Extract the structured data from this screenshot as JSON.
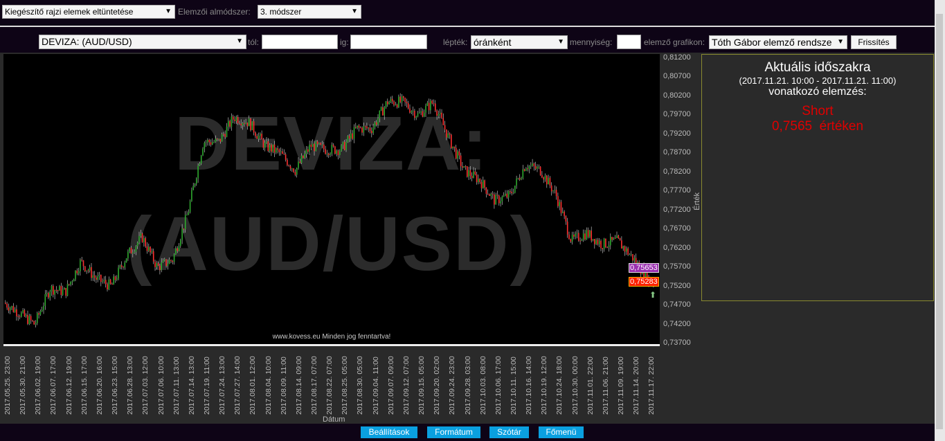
{
  "toolbar1": {
    "overlay_select": "Kiegészítő rajzi elemek eltüntetése",
    "submethod_label": "Elemzői almódszer:",
    "submethod_select": "3. módszer"
  },
  "toolbar2": {
    "instrument_select": "DEVIZA: (AUD/USD)",
    "from_label": "tól:",
    "from_value": "",
    "to_label": "ig:",
    "to_value": "",
    "scale_label": "lépték:",
    "scale_select": "óránként",
    "quantity_label": "mennyiség:",
    "quantity_value": "",
    "chart_label": "elemző grafikon:",
    "chart_select": "Tóth Gábor elemző rendsze",
    "refresh_button": "Frissítés"
  },
  "chart_data": {
    "type": "candlestick",
    "watermark": [
      "DEVIZA:",
      "(AUD/USD)"
    ],
    "footer": "www.kovess.eu Minden jog fenntartva!",
    "xlabel": "Dátum",
    "ylabel": "Érték",
    "ylim": [
      0.737,
      0.812
    ],
    "yticks": [
      "0,81200",
      "0,80700",
      "0,80200",
      "0,79700",
      "0,79200",
      "0,78700",
      "0,78200",
      "0,77700",
      "0,77200",
      "0,76700",
      "0,76200",
      "0,75700",
      "0,75200",
      "0,74700",
      "0,74200",
      "0,73700"
    ],
    "ytick_values": [
      0.812,
      0.807,
      0.802,
      0.797,
      0.792,
      0.787,
      0.782,
      0.777,
      0.772,
      0.767,
      0.762,
      0.757,
      0.752,
      0.747,
      0.742,
      0.737
    ],
    "xticks": [
      "2017.05.25. 23:00",
      "2017.05.30. 21:00",
      "2017.06.02. 19:00",
      "2017.06.07. 17:00",
      "2017.06.12. 19:00",
      "2017.06.15. 17:00",
      "2017.06.20. 16:00",
      "2017.06.23. 15:00",
      "2017.06.28. 13:00",
      "2017.07.03. 12:00",
      "2017.07.06. 10:00",
      "2017.07.11. 13:00",
      "2017.07.14. 13:00",
      "2017.07.19. 11:00",
      "2017.07.24. 13:00",
      "2017.07.27. 14:00",
      "2017.08.01. 12:00",
      "2017.08.04. 10:00",
      "2017.08.09. 11:00",
      "2017.08.14. 09:00",
      "2017.08.17. 07:00",
      "2017.08.22. 07:00",
      "2017.08.25. 05:00",
      "2017.08.30. 05:00",
      "2017.09.04. 11:00",
      "2017.09.07. 09:00",
      "2017.09.12. 07:00",
      "2017.09.15. 05:00",
      "2017.09.20. 02:00",
      "2017.09.24. 23:00",
      "2017.09.28. 03:00",
      "2017.10.03. 08:00",
      "2017.10.06. 17:00",
      "2017.10.11. 15:00",
      "2017.10.16. 14:00",
      "2017.10.19. 12:00",
      "2017.10.24. 18:00",
      "2017.10.30. 00:00",
      "2017.11.01. 22:00",
      "2017.11.06. 21:00",
      "2017.11.09. 19:00",
      "2017.11.14. 20:00",
      "2017.11.17. 22:00"
    ],
    "approx_close_at_ticks": [
      0.7477,
      0.745,
      0.742,
      0.7515,
      0.7505,
      0.7585,
      0.754,
      0.752,
      0.76,
      0.765,
      0.757,
      0.759,
      0.7715,
      0.79,
      0.79,
      0.7965,
      0.795,
      0.789,
      0.787,
      0.7825,
      0.789,
      0.788,
      0.788,
      0.7935,
      0.7935,
      0.8005,
      0.8005,
      0.797,
      0.8005,
      0.791,
      0.7825,
      0.78,
      0.7745,
      0.776,
      0.784,
      0.7825,
      0.776,
      0.764,
      0.766,
      0.763,
      0.764,
      0.7595,
      0.754
    ],
    "last_close": 0.7525,
    "markers": [
      {
        "label": "0,75653",
        "color": "#9b30b0"
      },
      {
        "label": "0,75283",
        "color": "#ff2000"
      }
    ],
    "up_color": "#2faa2f",
    "down_color": "#ff3030"
  },
  "panel": {
    "title": "Aktuális időszakra",
    "period": "(2017.11.21. 10:00 - 2017.11.21. 11:00)",
    "subtitle": "vonatkozó elemzés:",
    "signal": "Short",
    "value": "0,7565  értéken",
    "signal_color": "#e00000"
  },
  "bottom": {
    "settings": "Beállítások",
    "format": "Formátum",
    "dictionary": "Szótár",
    "main_menu": "Főmenü"
  }
}
